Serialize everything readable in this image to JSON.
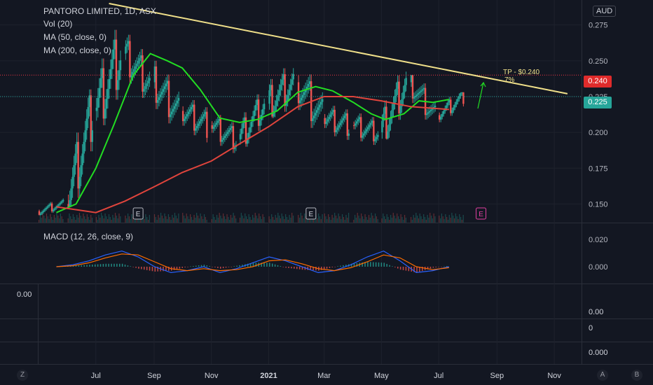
{
  "header": {
    "symbol_line": "PANTORO LIMITED, 1D, ASX",
    "vol": "Vol (20)",
    "ma50": "MA (50, close, 0)",
    "ma200": "MA (200, close, 0)",
    "currency": "AUD"
  },
  "macd_label": "MACD (12, 26, close, 9)",
  "annotation": {
    "tp_line1": "TP - $0.240",
    "tp_line2": "7%"
  },
  "price_badges": {
    "target": "0.240",
    "current": "0.225"
  },
  "empty_panes": {
    "left_value": "0.00",
    "pane1": "0.00",
    "pane2": "0",
    "pane3": "0.000"
  },
  "corner_buttons": {
    "bottom_left": "Z",
    "a": "A",
    "b": "B"
  },
  "colors": {
    "background": "#131722",
    "grid": "#1e222d",
    "up": "#26a69a",
    "down": "#ef5350",
    "ma50": "#22dd22",
    "ma200": "#e0443c",
    "trendline": "#f0e08a",
    "target_line": "#f23645",
    "current_line": "#26a69a",
    "macd": "#2962ff",
    "signal": "#ff6d00"
  },
  "chart_data": [
    {
      "type": "line",
      "title": "PANTORO LIMITED, 1D, ASX",
      "yaxis": {
        "ticks": [
          "0.275",
          "0.250",
          "0.225",
          "0.200",
          "0.175",
          "0.150"
        ],
        "range": [
          0.137,
          0.29
        ]
      },
      "xaxis": {
        "ticks": [
          "Jul",
          "Sep",
          "Nov",
          "2021",
          "Mar",
          "May",
          "Jul",
          "Sep",
          "Nov"
        ]
      },
      "series": [
        {
          "name": "MA (50, close, 0)",
          "x": [
            "2020-05-20",
            "2020-06-10",
            "2020-07-01",
            "2020-07-20",
            "2020-08-10",
            "2020-08-28",
            "2020-09-15",
            "2020-10-01",
            "2020-10-20",
            "2020-11-10",
            "2020-12-01",
            "2020-12-20",
            "2021-01-10",
            "2021-02-01",
            "2021-02-20",
            "2021-03-10",
            "2021-04-01",
            "2021-04-20",
            "2021-05-05",
            "2021-05-25",
            "2021-06-10",
            "2021-06-25",
            "2021-07-12"
          ],
          "y": [
            0.144,
            0.15,
            0.175,
            0.205,
            0.24,
            0.255,
            0.25,
            0.245,
            0.23,
            0.21,
            0.207,
            0.209,
            0.215,
            0.228,
            0.232,
            0.229,
            0.221,
            0.213,
            0.209,
            0.213,
            0.222,
            0.221,
            0.223
          ]
        },
        {
          "name": "MA (200, close, 0)",
          "x": [
            "2020-05-20",
            "2020-07-01",
            "2020-08-01",
            "2020-09-01",
            "2020-10-01",
            "2020-11-01",
            "2020-12-01",
            "2021-01-01",
            "2021-02-01",
            "2021-03-01",
            "2021-04-01",
            "2021-05-01",
            "2021-06-01",
            "2021-07-12"
          ],
          "y": [
            0.148,
            0.144,
            0.152,
            0.162,
            0.172,
            0.18,
            0.192,
            0.204,
            0.218,
            0.225,
            0.225,
            0.222,
            0.218,
            0.216
          ]
        }
      ],
      "candles": [
        {
          "x": "2020-05",
          "open": 0.145,
          "close": 0.15,
          "high": 0.155,
          "low": 0.142
        },
        {
          "x": "2020-06",
          "open": 0.15,
          "close": 0.215,
          "high": 0.23,
          "low": 0.148
        },
        {
          "x": "2020-07",
          "open": 0.215,
          "close": 0.255,
          "high": 0.29,
          "low": 0.205
        },
        {
          "x": "2020-08",
          "open": 0.255,
          "close": 0.235,
          "high": 0.275,
          "low": 0.22
        },
        {
          "x": "2020-09",
          "open": 0.235,
          "close": 0.215,
          "high": 0.25,
          "low": 0.195
        },
        {
          "x": "2020-10",
          "open": 0.215,
          "close": 0.205,
          "high": 0.23,
          "low": 0.19
        },
        {
          "x": "2020-11",
          "open": 0.205,
          "close": 0.195,
          "high": 0.215,
          "low": 0.18
        },
        {
          "x": "2020-12",
          "open": 0.195,
          "close": 0.22,
          "high": 0.235,
          "low": 0.19
        },
        {
          "x": "2021-01",
          "open": 0.22,
          "close": 0.235,
          "high": 0.262,
          "low": 0.21
        },
        {
          "x": "2021-02",
          "open": 0.235,
          "close": 0.21,
          "high": 0.25,
          "low": 0.19
        },
        {
          "x": "2021-03",
          "open": 0.21,
          "close": 0.205,
          "high": 0.225,
          "low": 0.19
        },
        {
          "x": "2021-04",
          "open": 0.205,
          "close": 0.2,
          "high": 0.22,
          "low": 0.188
        },
        {
          "x": "2021-05",
          "open": 0.2,
          "close": 0.235,
          "high": 0.25,
          "low": 0.195
        },
        {
          "x": "2021-06",
          "open": 0.235,
          "close": 0.212,
          "high": 0.24,
          "low": 0.2
        },
        {
          "x": "2021-07",
          "open": 0.212,
          "close": 0.225,
          "high": 0.228,
          "low": 0.205
        }
      ],
      "trendline": {
        "from": {
          "x": "2020-07",
          "y": 0.29
        },
        "to": {
          "x": "2021-11",
          "y": 0.227
        }
      },
      "horizontal_lines": [
        {
          "label": "0.240",
          "y": 0.24
        },
        {
          "label": "0.225",
          "y": 0.225
        }
      ],
      "earnings_markers": [
        {
          "x": "2020-08",
          "label": "E"
        },
        {
          "x": "2021-02",
          "label": "E"
        },
        {
          "x": "2021-08",
          "label": "E"
        }
      ],
      "annotations": [
        {
          "text": "TP - $0.240",
          "sub": "7%",
          "arrow": "up"
        }
      ]
    },
    {
      "type": "line",
      "title": "MACD (12, 26, close, 9)",
      "yaxis": {
        "ticks": [
          "0.020",
          "0.000"
        ]
      },
      "series": [
        {
          "name": "MACD",
          "y": [
            0,
            0.002,
            0.006,
            0.012,
            0.016,
            0.01,
            0.0,
            -0.006,
            -0.004,
            0.0,
            -0.006,
            -0.002,
            0.004,
            0.01,
            0.006,
            0.0,
            -0.006,
            -0.004,
            0.002,
            0.01,
            0.016,
            0.006,
            -0.006,
            -0.004,
            0.0
          ]
        },
        {
          "name": "Signal",
          "y": [
            0,
            0.001,
            0.004,
            0.009,
            0.013,
            0.012,
            0.005,
            -0.002,
            -0.004,
            -0.002,
            -0.004,
            -0.003,
            0.0,
            0.006,
            0.007,
            0.003,
            -0.002,
            -0.004,
            -0.001,
            0.005,
            0.012,
            0.009,
            0.0,
            -0.003,
            -0.001
          ]
        }
      ]
    }
  ]
}
